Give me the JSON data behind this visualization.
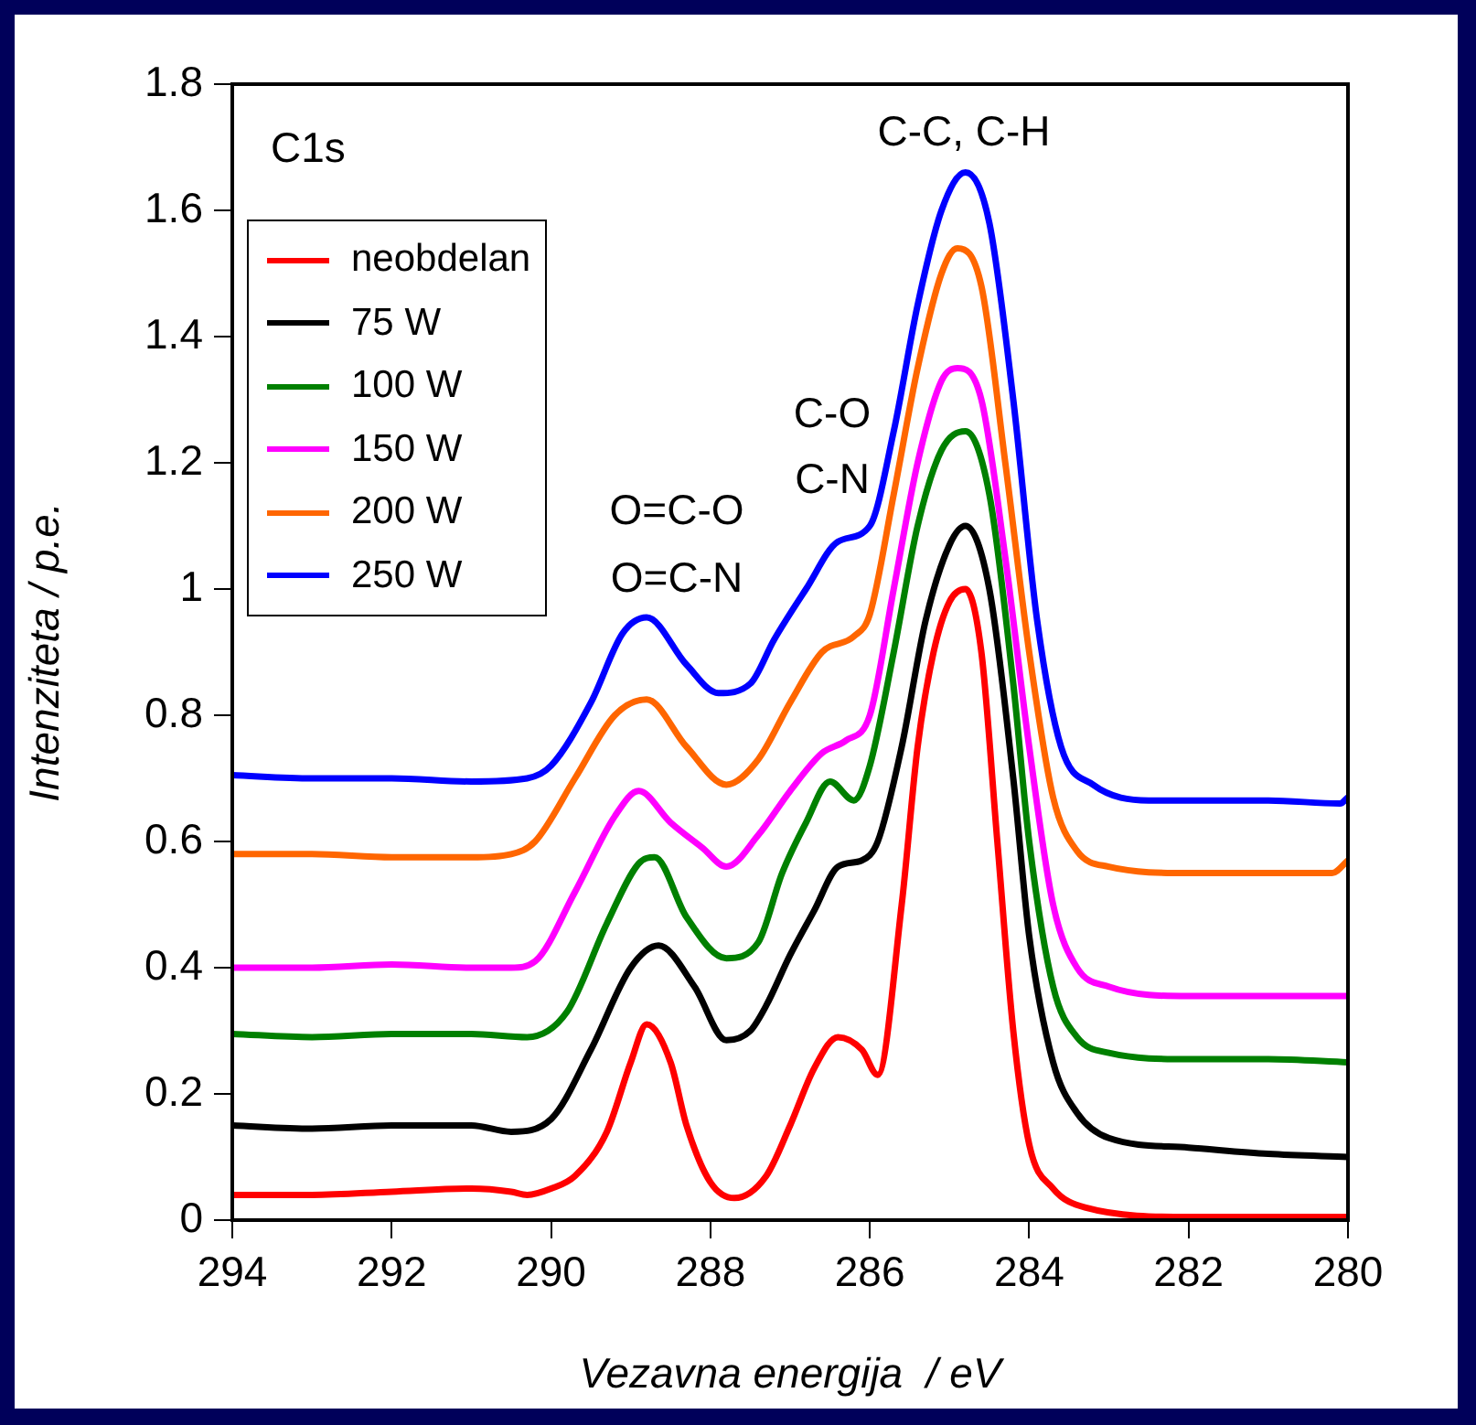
{
  "chart_data": {
    "type": "line",
    "xlabel": "Vezavna energija  / eV",
    "ylabel": "Intenziteta / p.e.",
    "xlim": [
      294,
      280
    ],
    "xticks": [
      294,
      292,
      290,
      288,
      286,
      284,
      282,
      280
    ],
    "ylim": [
      0,
      1.8
    ],
    "yticks": [
      0,
      0.2,
      0.4,
      0.6,
      0.8,
      1,
      1.2,
      1.4,
      1.6,
      1.8
    ],
    "legend": "top left",
    "grid": false,
    "marker": "none",
    "line_style": "solid",
    "annotations": [
      "C1s",
      "C-C, C-H",
      "C-O",
      "C-N",
      "O=C-O",
      "O=C-N"
    ],
    "series": [
      {
        "name": "neobdelan",
        "color": "#ff0000",
        "x": [
          294,
          293,
          292,
          291,
          290.5,
          290.3,
          290,
          289.7,
          289.3,
          289,
          288.8,
          288.5,
          288.3,
          288,
          287.7,
          287.3,
          287,
          286.7,
          286.4,
          286.1,
          285.9,
          285.6,
          285.4,
          285.2,
          285,
          284.8,
          284.6,
          284.4,
          284.2,
          284,
          283.7,
          283.3,
          282,
          281,
          280
        ],
        "values": [
          0.04,
          0.04,
          0.045,
          0.05,
          0.045,
          0.04,
          0.05,
          0.07,
          0.14,
          0.25,
          0.31,
          0.25,
          0.15,
          0.06,
          0.035,
          0.07,
          0.15,
          0.24,
          0.29,
          0.27,
          0.23,
          0.5,
          0.75,
          0.9,
          0.98,
          1.0,
          0.9,
          0.6,
          0.3,
          0.12,
          0.05,
          0.02,
          0.005,
          0.005,
          0.005
        ]
      },
      {
        "name": "75 W",
        "color": "#000000",
        "x": [
          294,
          293,
          292,
          291,
          290.5,
          290,
          289.5,
          289,
          288.65,
          288.2,
          287.8,
          287.5,
          287.3,
          287,
          286.7,
          286.4,
          286.1,
          285.9,
          285.6,
          285.3,
          285,
          284.8,
          284.5,
          284.2,
          284,
          283.7,
          283.4,
          283,
          282,
          281,
          280
        ],
        "values": [
          0.15,
          0.145,
          0.15,
          0.15,
          0.14,
          0.16,
          0.27,
          0.4,
          0.435,
          0.37,
          0.285,
          0.3,
          0.34,
          0.42,
          0.49,
          0.56,
          0.57,
          0.6,
          0.75,
          0.95,
          1.07,
          1.1,
          1.0,
          0.7,
          0.45,
          0.25,
          0.17,
          0.13,
          0.115,
          0.105,
          0.1
        ]
      },
      {
        "name": "100 W",
        "color": "#008000",
        "x": [
          294,
          293,
          292,
          291,
          290.3,
          289.8,
          289.3,
          288.9,
          288.7,
          288.3,
          287.8,
          287.4,
          287.1,
          286.8,
          286.5,
          286.2,
          286,
          285.7,
          285.4,
          285.1,
          284.8,
          284.5,
          284.2,
          284,
          283.7,
          283.4,
          283,
          282,
          281,
          280
        ],
        "values": [
          0.295,
          0.29,
          0.295,
          0.295,
          0.29,
          0.33,
          0.47,
          0.565,
          0.575,
          0.48,
          0.415,
          0.44,
          0.55,
          0.63,
          0.695,
          0.665,
          0.72,
          0.9,
          1.1,
          1.22,
          1.25,
          1.15,
          0.85,
          0.6,
          0.37,
          0.29,
          0.265,
          0.255,
          0.255,
          0.25
        ]
      },
      {
        "name": "150 W",
        "color": "#ff00ff",
        "x": [
          294,
          293,
          292,
          291,
          290.5,
          290.2,
          289.7,
          289.2,
          288.9,
          288.5,
          288.1,
          287.8,
          287.4,
          287,
          286.6,
          286.3,
          286,
          285.7,
          285.4,
          285.1,
          284.9,
          284.6,
          284.3,
          284,
          283.7,
          283.4,
          283,
          282,
          281,
          280
        ],
        "values": [
          0.4,
          0.4,
          0.405,
          0.4,
          0.4,
          0.41,
          0.52,
          0.64,
          0.68,
          0.63,
          0.59,
          0.56,
          0.61,
          0.68,
          0.74,
          0.76,
          0.8,
          1.0,
          1.2,
          1.33,
          1.35,
          1.3,
          1.05,
          0.75,
          0.5,
          0.4,
          0.37,
          0.355,
          0.355,
          0.355
        ]
      },
      {
        "name": "200 W",
        "color": "#ff6600",
        "x": [
          294,
          293,
          292,
          291,
          290.5,
          290.2,
          289.7,
          289.2,
          288.8,
          288.3,
          287.8,
          287.4,
          287,
          286.6,
          286.2,
          286,
          285.7,
          285.4,
          285.1,
          284.9,
          284.6,
          284.3,
          284,
          283.7,
          283.4,
          283,
          282,
          281,
          280.2,
          280
        ],
        "values": [
          0.58,
          0.58,
          0.575,
          0.575,
          0.58,
          0.6,
          0.7,
          0.8,
          0.825,
          0.75,
          0.69,
          0.73,
          0.82,
          0.9,
          0.925,
          0.96,
          1.15,
          1.35,
          1.5,
          1.54,
          1.48,
          1.2,
          0.9,
          0.67,
          0.585,
          0.56,
          0.55,
          0.55,
          0.55,
          0.57
        ]
      },
      {
        "name": "250 W",
        "color": "#0000ff",
        "x": [
          294,
          293,
          292,
          291,
          290.3,
          290,
          289.5,
          289.1,
          288.8,
          288.3,
          287.9,
          287.5,
          287.2,
          286.8,
          286.4,
          286,
          285.7,
          285.4,
          285.1,
          284.8,
          284.5,
          284.2,
          283.9,
          283.6,
          283.2,
          282.5,
          281,
          280.1,
          280
        ],
        "values": [
          0.705,
          0.7,
          0.7,
          0.695,
          0.7,
          0.72,
          0.82,
          0.93,
          0.955,
          0.88,
          0.835,
          0.85,
          0.92,
          1.0,
          1.075,
          1.1,
          1.25,
          1.45,
          1.6,
          1.66,
          1.58,
          1.3,
          0.95,
          0.75,
          0.69,
          0.665,
          0.665,
          0.66,
          0.67
        ]
      }
    ]
  }
}
